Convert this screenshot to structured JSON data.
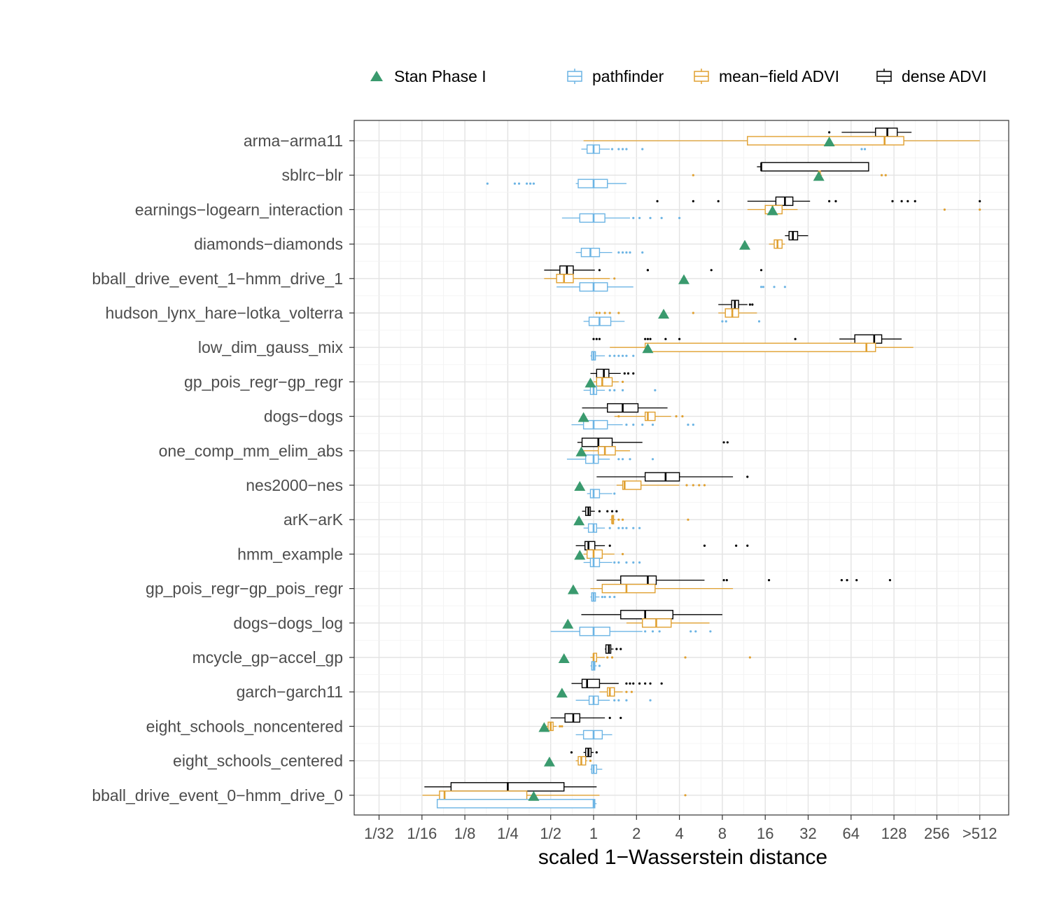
{
  "chart_data": {
    "type": "box",
    "xlabel": "scaled 1−Wasserstein distance",
    "ylabel": "",
    "x_scale": "log2",
    "x_ticks": [
      "1/32",
      "1/16",
      "1/8",
      "1/4",
      "1/2",
      "1",
      "2",
      "4",
      "8",
      "16",
      "32",
      "64",
      "128",
      "256",
      ">512"
    ],
    "xlim": [
      0.022,
      1000
    ],
    "grid": true,
    "legend_position": "top",
    "legend": [
      {
        "name": "Stan Phase I",
        "marker": "triangle",
        "color": "#3a9a6e"
      },
      {
        "name": "pathfinder",
        "marker": "box",
        "color": "#6cb4e4"
      },
      {
        "name": "mean−field ADVI",
        "marker": "box",
        "color": "#e0a030"
      },
      {
        "name": "dense ADVI",
        "marker": "box",
        "color": "#000000"
      }
    ],
    "categories": [
      "arma−arma11",
      "sblrc−blr",
      "earnings−logearn_interaction",
      "diamonds−diamonds",
      "bball_drive_event_1−hmm_drive_1",
      "hudson_lynx_hare−lotka_volterra",
      "low_dim_gauss_mix",
      "gp_pois_regr−gp_regr",
      "dogs−dogs",
      "one_comp_mm_elim_abs",
      "nes2000−nes",
      "arK−arK",
      "hmm_example",
      "gp_pois_regr−gp_pois_regr",
      "dogs−dogs_log",
      "mcycle_gp−accel_gp",
      "garch−garch11",
      "eight_schools_noncentered",
      "eight_schools_centered",
      "bball_drive_event_0−hmm_drive_0"
    ],
    "series": [
      {
        "name": "Stan Phase I",
        "values": [
          45,
          38,
          18,
          11.5,
          4.3,
          3.1,
          2.4,
          0.95,
          0.85,
          0.82,
          0.8,
          0.79,
          0.8,
          0.72,
          0.66,
          0.62,
          0.6,
          0.45,
          0.49,
          0.38
        ]
      },
      {
        "name": "dense ADVI",
        "boxes": [
          {
            "min": 55,
            "q1": 95,
            "median": 115,
            "q3": 135,
            "max": 170,
            "outliers": [
              45
            ]
          },
          {
            "min": 14,
            "q1": 15,
            "median": 15,
            "q3": 85,
            "max": 85,
            "outliers": []
          },
          {
            "min": 12,
            "q1": 19,
            "median": 22,
            "q3": 25,
            "max": 33,
            "outliers": [
              2.8,
              5,
              7.5,
              45,
              50,
              125,
              145,
              160,
              180,
              512
            ]
          },
          {
            "min": 22,
            "q1": 23.5,
            "median": 25,
            "q3": 27,
            "max": 32,
            "outliers": []
          },
          {
            "min": 0.45,
            "q1": 0.58,
            "median": 0.65,
            "q3": 0.72,
            "max": 1.02,
            "outliers": [
              1.1,
              2.4,
              2.4,
              6.7,
              15
            ]
          },
          {
            "min": 7.5,
            "q1": 9.3,
            "median": 9.8,
            "q3": 10.4,
            "max": 12,
            "outliers": [
              12.5,
              13
            ]
          },
          {
            "min": 53,
            "q1": 68,
            "median": 93,
            "q3": 105,
            "max": 145,
            "outliers": [
              1,
              1.05,
              1.1,
              2.3,
              2.4,
              2.5,
              3.2,
              4,
              26
            ]
          },
          {
            "min": 0.95,
            "q1": 1.05,
            "median": 1.18,
            "q3": 1.28,
            "max": 1.55,
            "outliers": [
              1.65,
              1.75,
              1.9
            ]
          },
          {
            "min": 0.83,
            "q1": 1.25,
            "median": 1.6,
            "q3": 2.05,
            "max": 3.3,
            "outliers": []
          },
          {
            "min": 0.77,
            "q1": 0.83,
            "median": 1.08,
            "q3": 1.35,
            "max": 2.2,
            "outliers": [
              8.2,
              8.7
            ]
          },
          {
            "min": 1.05,
            "q1": 2.3,
            "median": 3.2,
            "q3": 4,
            "max": 9.5,
            "outliers": [
              12
            ]
          },
          {
            "min": 0.83,
            "q1": 0.88,
            "median": 0.92,
            "q3": 0.95,
            "max": 1.02,
            "outliers": [
              1.1,
              1.25,
              1.35,
              1.45
            ]
          },
          {
            "min": 0.75,
            "q1": 0.87,
            "median": 0.92,
            "q3": 1.02,
            "max": 1.2,
            "outliers": [
              1.3,
              6,
              10,
              12
            ]
          },
          {
            "min": 1.05,
            "q1": 1.55,
            "median": 2.4,
            "q3": 2.75,
            "max": 6,
            "outliers": [
              8.2,
              8.6,
              17,
              55,
              60,
              70,
              120
            ]
          },
          {
            "min": 0.82,
            "q1": 1.55,
            "median": 2.3,
            "q3": 3.6,
            "max": 8,
            "outliers": []
          },
          {
            "min": 1.2,
            "q1": 1.22,
            "median": 1.28,
            "q3": 1.32,
            "max": 1.38,
            "outliers": [
              1.45,
              1.55
            ]
          },
          {
            "min": 0.7,
            "q1": 0.83,
            "median": 0.9,
            "q3": 1.1,
            "max": 1.5,
            "outliers": [
              1.7,
              1.8,
              1.9,
              2.1,
              2.3,
              2.5,
              3
            ]
          },
          {
            "min": 0.5,
            "q1": 0.63,
            "median": 0.72,
            "q3": 0.8,
            "max": 1.2,
            "outliers": [
              1.3,
              1.55
            ]
          },
          {
            "min": 0.85,
            "q1": 0.88,
            "median": 0.92,
            "q3": 0.96,
            "max": 1,
            "outliers": [
              0.7,
              1.05
            ]
          },
          {
            "min": 0.065,
            "q1": 0.1,
            "median": 0.25,
            "q3": 0.62,
            "max": 1.05,
            "outliers": []
          }
        ]
      },
      {
        "name": "mean−field ADVI",
        "boxes": [
          {
            "min": 0.85,
            "q1": 12,
            "median": 110,
            "q3": 150,
            "max": 512,
            "outliers": []
          },
          {
            "min": 37,
            "q1": 38,
            "median": 38,
            "q3": 39,
            "max": 40,
            "outliers": [
              5,
              105,
              112
            ]
          },
          {
            "min": 12,
            "q1": 16,
            "median": 18,
            "q3": 21,
            "max": 27,
            "outliers": [
              290,
              512
            ]
          },
          {
            "min": 17,
            "q1": 18.5,
            "median": 19.5,
            "q3": 21,
            "max": 22,
            "outliers": []
          },
          {
            "min": 0.45,
            "q1": 0.55,
            "median": 0.62,
            "q3": 0.72,
            "max": 1.3,
            "outliers": [
              1.4
            ]
          },
          {
            "min": 7.5,
            "q1": 8.4,
            "median": 9.4,
            "q3": 10.4,
            "max": 14,
            "outliers": [
              1.05,
              1.1,
              1.2,
              1.3,
              1.5,
              5
            ]
          },
          {
            "min": 1.3,
            "q1": 2.3,
            "median": 82,
            "q3": 95,
            "max": 175,
            "outliers": []
          },
          {
            "min": 1,
            "q1": 1.05,
            "median": 1.15,
            "q3": 1.35,
            "max": 1.5,
            "outliers": [
              1.6
            ]
          },
          {
            "min": 1.4,
            "q1": 2.3,
            "median": 2.4,
            "q3": 2.7,
            "max": 3.5,
            "outliers": [
              1.5,
              3.8,
              4.2
            ]
          },
          {
            "min": 0.85,
            "q1": 1.08,
            "median": 1.2,
            "q3": 1.42,
            "max": 1.8,
            "outliers": []
          },
          {
            "min": 1.45,
            "q1": 1.6,
            "median": 1.65,
            "q3": 2.15,
            "max": 4,
            "outliers": [
              4.5,
              5,
              5.5,
              6
            ]
          },
          {
            "min": 1.3,
            "q1": 1.35,
            "median": 1.35,
            "q3": 1.38,
            "max": 1.42,
            "outliers": [
              1.5,
              1.6,
              4.6
            ]
          },
          {
            "min": 0.85,
            "q1": 0.9,
            "median": 1,
            "q3": 1.15,
            "max": 1.4,
            "outliers": [
              1.6
            ]
          },
          {
            "min": 0.95,
            "q1": 1.15,
            "median": 1.7,
            "q3": 2.7,
            "max": 9.5,
            "outliers": []
          },
          {
            "min": 1.7,
            "q1": 2.2,
            "median": 2.75,
            "q3": 3.5,
            "max": 6.5,
            "outliers": []
          },
          {
            "min": 0.95,
            "q1": 1,
            "median": 1,
            "q3": 1.05,
            "max": 1.2,
            "outliers": [
              1.25,
              1.35,
              4.4,
              12.5
            ]
          },
          {
            "min": 1.1,
            "q1": 1.25,
            "median": 1.3,
            "q3": 1.4,
            "max": 1.6,
            "outliers": [
              1.7,
              1.85
            ]
          },
          {
            "min": 0.45,
            "q1": 0.48,
            "median": 0.5,
            "q3": 0.52,
            "max": 0.55,
            "outliers": [
              0.58,
              0.6
            ]
          },
          {
            "min": 0.75,
            "q1": 0.78,
            "median": 0.82,
            "q3": 0.88,
            "max": 0.9,
            "outliers": [
              0.95
            ]
          },
          {
            "min": 0.063,
            "q1": 0.083,
            "median": 0.09,
            "q3": 0.34,
            "max": 1.1,
            "outliers": [
              4.4
            ]
          }
        ]
      },
      {
        "name": "pathfinder",
        "boxes": [
          {
            "min": 0.82,
            "q1": 0.9,
            "median": 1,
            "q3": 1.1,
            "max": 1.3,
            "outliers": [
              1.35,
              1.5,
              1.6,
              1.7,
              2.2,
              76,
              80
            ]
          },
          {
            "min": 0.75,
            "q1": 0.78,
            "median": 1,
            "q3": 1.25,
            "max": 1.7,
            "outliers": [
              0.18,
              0.28,
              0.3,
              0.34,
              0.36,
              0.38
            ]
          },
          {
            "min": 0.6,
            "q1": 0.8,
            "median": 1,
            "q3": 1.2,
            "max": 1.8,
            "outliers": [
              1.9,
              2.1,
              2.5,
              3,
              4
            ]
          },
          {
            "min": 0.75,
            "q1": 0.82,
            "median": 0.95,
            "q3": 1.1,
            "max": 1.35,
            "outliers": [
              1.5,
              1.6,
              1.7,
              1.8,
              2.2
            ]
          },
          {
            "min": 0.55,
            "q1": 0.8,
            "median": 1,
            "q3": 1.25,
            "max": 1.9,
            "outliers": [
              15,
              15.5,
              18.5,
              22
            ]
          },
          {
            "min": 0.85,
            "q1": 0.93,
            "median": 1.1,
            "q3": 1.32,
            "max": 1.65,
            "outliers": [
              8,
              8.5,
              14.5
            ]
          },
          {
            "min": 0.95,
            "q1": 0.97,
            "median": 1,
            "q3": 1.03,
            "max": 1.2,
            "outliers": [
              1.3,
              1.4,
              1.5,
              1.6,
              1.7,
              1.9
            ]
          },
          {
            "min": 0.85,
            "q1": 0.95,
            "median": 1,
            "q3": 1.05,
            "max": 1.2,
            "outliers": [
              1.3,
              1.4,
              1.6,
              2.7
            ]
          },
          {
            "min": 0.7,
            "q1": 0.85,
            "median": 1,
            "q3": 1.25,
            "max": 1.6,
            "outliers": [
              1.7,
              1.9,
              2.2,
              2.6,
              4.6,
              5
            ]
          },
          {
            "min": 0.65,
            "q1": 0.88,
            "median": 1,
            "q3": 1.08,
            "max": 1.3,
            "outliers": [
              1.5,
              1.6,
              1.8,
              2.6
            ]
          },
          {
            "min": 0.9,
            "q1": 0.95,
            "median": 1,
            "q3": 1.1,
            "max": 1.35,
            "outliers": [
              1.4
            ]
          },
          {
            "min": 0.85,
            "q1": 0.92,
            "median": 1,
            "q3": 1.05,
            "max": 1.2,
            "outliers": [
              1.3,
              1.5,
              1.6,
              1.7,
              1.9,
              2.1
            ]
          },
          {
            "min": 0.85,
            "q1": 0.95,
            "median": 1,
            "q3": 1.1,
            "max": 1.35,
            "outliers": [
              1.4,
              1.5,
              1.7,
              1.9,
              2.1
            ]
          },
          {
            "min": 0.95,
            "q1": 0.97,
            "median": 1,
            "q3": 1.03,
            "max": 1.1,
            "outliers": [
              1.15,
              1.2,
              1.3,
              1.4
            ]
          },
          {
            "min": 0.5,
            "q1": 0.8,
            "median": 1,
            "q3": 1.3,
            "max": 2.2,
            "outliers": [
              2.3,
              2.6,
              2.9,
              4.8,
              5.2,
              6.6
            ]
          },
          {
            "min": 0.95,
            "q1": 0.97,
            "median": 1,
            "q3": 1.02,
            "max": 1.05,
            "outliers": [
              1.1
            ]
          },
          {
            "min": 0.75,
            "q1": 0.93,
            "median": 1,
            "q3": 1.08,
            "max": 1.3,
            "outliers": [
              1.4,
              1.5,
              1.7,
              2.5
            ]
          },
          {
            "min": 0.75,
            "q1": 0.85,
            "median": 1,
            "q3": 1.15,
            "max": 1.35,
            "outliers": []
          },
          {
            "min": 0.95,
            "q1": 0.97,
            "median": 1,
            "q3": 1.05,
            "max": 1.15,
            "outliers": []
          },
          {
            "min": 0.08,
            "q1": 0.08,
            "median": 1,
            "q3": 1.02,
            "max": 1.05,
            "outliers": []
          }
        ]
      }
    ]
  }
}
